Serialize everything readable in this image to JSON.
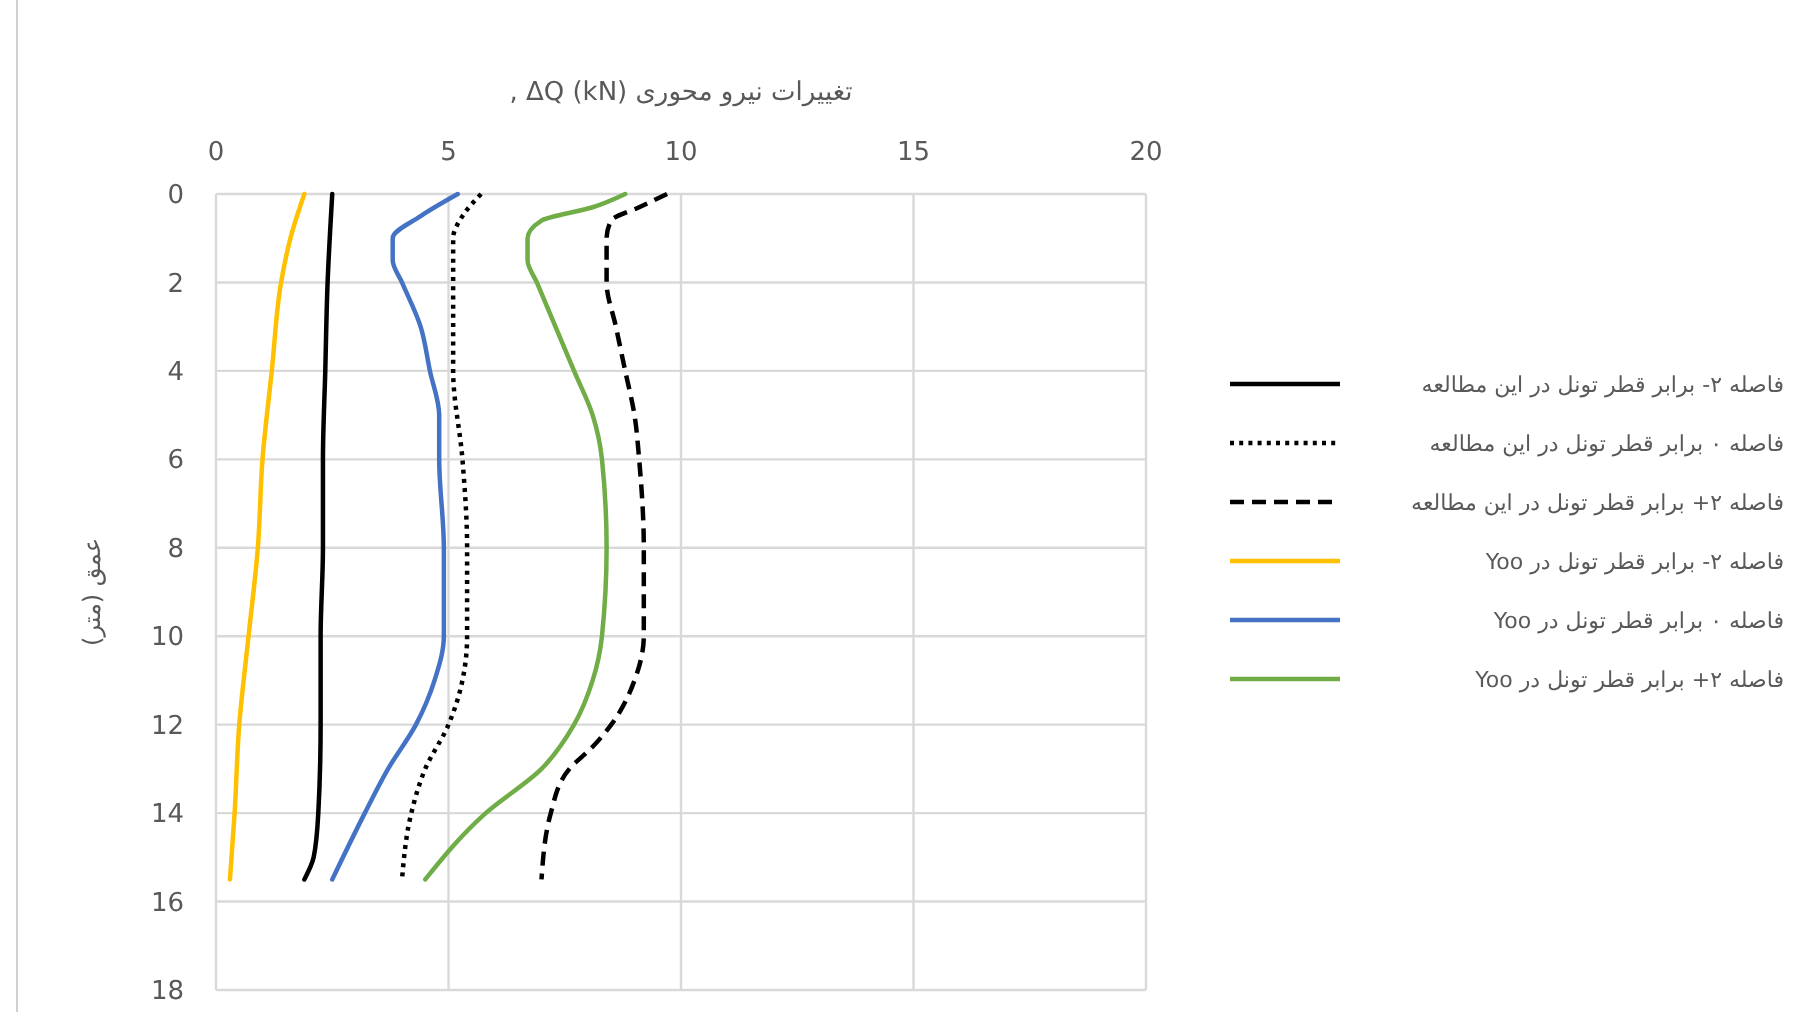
{
  "chart_data": {
    "type": "line",
    "xlabel": "تغییرات نیرو محوری ΔQ (kN) ,",
    "ylabel": "عمق (متر)",
    "xlim": [
      0,
      20
    ],
    "xticks": [
      0,
      5,
      10,
      15,
      20
    ],
    "ylim": [
      18,
      0
    ],
    "yticks": [
      0,
      2,
      4,
      6,
      8,
      10,
      12,
      14,
      16,
      18
    ],
    "grid": true,
    "legend": "right",
    "series": [
      {
        "name": "فاصله ۲- برابر قطر تونل در این مطالعه",
        "color": "#000000",
        "line_style": "solid",
        "x": [
          2.5,
          2.4,
          2.35,
          2.3,
          2.3,
          2.25,
          2.25,
          2.2,
          2.1,
          1.9
        ],
        "values": [
          0,
          2,
          4,
          6,
          8,
          10,
          12,
          14,
          15,
          15.5
        ]
      },
      {
        "name": "فاصله ۰ برابر قطر تونل در این مطالعه",
        "color": "#000000",
        "line_style": "dotted",
        "x": [
          5.7,
          5.3,
          5.1,
          5.1,
          5.1,
          5.3,
          5.4,
          5.4,
          5.3,
          5.0,
          4.5,
          4.2,
          4.0
        ],
        "values": [
          0,
          0.5,
          1,
          2,
          4,
          6,
          8,
          10,
          11,
          12,
          13,
          14,
          15.5
        ]
      },
      {
        "name": "فاصله ۲+ برابر قطر تونل در این مطالعه",
        "color": "#000000",
        "line_style": "dashed",
        "x": [
          9.7,
          9.1,
          8.5,
          8.4,
          8.4,
          8.6,
          8.8,
          9.0,
          9.1,
          9.2,
          9.2,
          9.0,
          8.5,
          8.1,
          7.6,
          7.2,
          7.0
        ],
        "values": [
          0,
          0.3,
          0.6,
          1,
          2,
          3,
          4,
          5,
          6,
          8,
          10,
          11,
          12,
          12.5,
          13,
          14,
          15.5
        ]
      },
      {
        "name": "فاصله ۲- برابر قطر تونل در Yoo",
        "color": "#ffc000",
        "line_style": "solid",
        "x": [
          1.9,
          1.6,
          1.4,
          1.2,
          1.0,
          0.9,
          0.7,
          0.5,
          0.4,
          0.3
        ],
        "values": [
          0,
          1,
          2,
          4,
          6,
          8,
          10,
          12,
          14,
          15.5
        ]
      },
      {
        "name": "فاصله ۰ برابر قطر تونل در Yoo",
        "color": "#4472c4",
        "line_style": "solid",
        "x": [
          5.2,
          4.4,
          3.8,
          3.8,
          4.0,
          4.4,
          4.6,
          4.8,
          4.8,
          4.9,
          4.9,
          4.7,
          4.3,
          3.7,
          3.2,
          2.5
        ],
        "values": [
          0,
          0.5,
          1,
          1.5,
          2,
          3,
          4,
          5,
          6,
          8,
          10,
          11,
          12,
          13,
          14,
          15.5
        ]
      },
      {
        "name": "فاصله ۲+ برابر قطر تونل در Yoo",
        "color": "#70ad47",
        "line_style": "solid",
        "x": [
          8.8,
          8.1,
          7.0,
          6.7,
          6.7,
          6.9,
          7.3,
          7.7,
          8.1,
          8.3,
          8.4,
          8.3,
          8.1,
          7.7,
          7.0,
          5.8,
          4.5
        ],
        "values": [
          0,
          0.3,
          0.6,
          1,
          1.5,
          2,
          3,
          4,
          5,
          6,
          8,
          10,
          11,
          12,
          13,
          14,
          15.5
        ]
      }
    ]
  }
}
